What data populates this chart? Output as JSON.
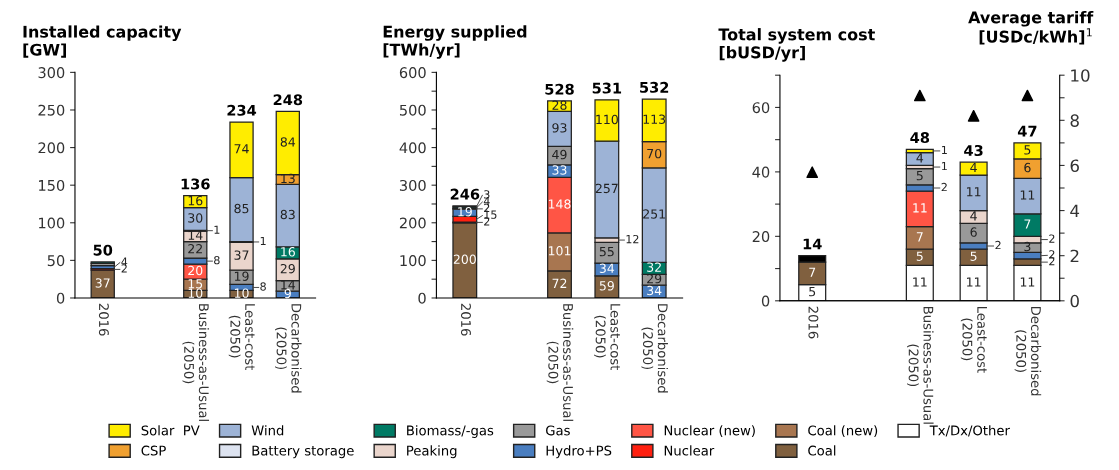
{
  "chart_data": [
    {
      "type": "bar",
      "stacked": true,
      "title": "Installed capacity\n[GW]",
      "categories": [
        "2016",
        null,
        "Business-as-Usual\n(2050)",
        "Least-cost\n(2050)",
        "Decarbonised\n(2050)"
      ],
      "ylim": [
        0,
        300
      ],
      "yticks": [
        0,
        50,
        100,
        150,
        200,
        250,
        300
      ],
      "grid": false,
      "legend": "bottom",
      "totals": [
        "50",
        null,
        "136",
        "234",
        "248"
      ],
      "series": [
        {
          "name": "Tx/Dx/Other",
          "color": "#ffffff",
          "values": [
            null,
            null,
            null,
            null,
            null
          ],
          "value_labels": [
            null,
            null,
            null,
            null,
            null
          ]
        },
        {
          "name": "Coal",
          "color": "#80603f",
          "values": [
            37,
            null,
            10,
            10,
            null
          ],
          "value_labels": [
            "37",
            null,
            "10",
            "10",
            null
          ]
        },
        {
          "name": "Coal (new)",
          "color": "#a87650",
          "values": [
            null,
            null,
            15,
            null,
            null
          ],
          "value_labels": [
            null,
            null,
            "15",
            null,
            null
          ]
        },
        {
          "name": "Nuclear",
          "color": "#ff2010",
          "values": [
            2,
            null,
            null,
            null,
            null
          ],
          "value_labels": [
            "2",
            null,
            null,
            null,
            null
          ]
        },
        {
          "name": "Nuclear (new)",
          "color": "#ff5545",
          "values": [
            null,
            null,
            20,
            null,
            null
          ],
          "value_labels": [
            null,
            null,
            "20",
            null,
            null
          ]
        },
        {
          "name": "Hydro+PS",
          "color": "#4a7ec0",
          "values": [
            4,
            null,
            8,
            8,
            9
          ],
          "value_labels": [
            "4",
            null,
            "8",
            "8",
            "9"
          ]
        },
        {
          "name": "Gas",
          "color": "#999999",
          "values": [
            3,
            null,
            22,
            19,
            14
          ],
          "value_labels": [
            null,
            null,
            "22",
            "19",
            "14"
          ]
        },
        {
          "name": "Peaking",
          "color": "#ead5cc",
          "values": [
            null,
            null,
            14,
            37,
            29
          ],
          "value_labels": [
            null,
            null,
            "14",
            "37",
            "29"
          ]
        },
        {
          "name": "Biomass/-gas",
          "color": "#007a64",
          "values": [
            2,
            null,
            null,
            1,
            16
          ],
          "value_labels": [
            null,
            null,
            null,
            "1",
            "16"
          ]
        },
        {
          "name": "Battery storage",
          "color": "#dde3f0",
          "values": [
            null,
            null,
            1,
            null,
            null
          ],
          "value_labels": [
            null,
            null,
            "1",
            null,
            null
          ]
        },
        {
          "name": "Wind",
          "color": "#9db3d6",
          "values": [
            null,
            null,
            30,
            85,
            83
          ],
          "value_labels": [
            null,
            null,
            "30",
            "85",
            "83"
          ]
        },
        {
          "name": "CSP",
          "color": "#f0a030",
          "values": [
            null,
            null,
            null,
            null,
            13
          ],
          "value_labels": [
            null,
            null,
            null,
            null,
            "13"
          ]
        },
        {
          "name": "Solar  PV",
          "color": "#ffed00",
          "values": [
            null,
            null,
            16,
            74,
            84
          ],
          "value_labels": [
            null,
            null,
            "16",
            "74",
            "84"
          ]
        }
      ]
    },
    {
      "type": "bar",
      "stacked": true,
      "title": "Energy supplied\n[TWh/yr]",
      "categories": [
        "2016",
        null,
        "Business-as-Usual\n(2050)",
        "Least-cost\n(2050)",
        "Decarbonised\n(2050)"
      ],
      "ylim": [
        0,
        600
      ],
      "yticks": [
        0,
        {
          "value": 50,
          "label": null
        },
        100,
        {
          "value": 150,
          "label": null
        },
        200,
        {
          "value": 250,
          "label": null
        },
        300,
        {
          "value": 350,
          "label": null
        },
        400,
        {
          "value": 450,
          "label": null
        },
        500,
        {
          "value": 550,
          "label": null
        },
        600
      ],
      "grid": false,
      "totals": [
        "246",
        null,
        "528",
        "531",
        "532"
      ],
      "series": [
        {
          "color": "#80603f",
          "values": [
            200,
            null,
            72,
            59,
            null
          ],
          "value_labels": [
            "200",
            null,
            "72",
            "59",
            null
          ]
        },
        {
          "color": "#a87650",
          "values": [
            2,
            null,
            101,
            null,
            null
          ],
          "value_labels": [
            "2",
            null,
            "101",
            null,
            null
          ]
        },
        {
          "color": "#ff2010",
          "values": [
            15,
            null,
            null,
            null,
            null
          ],
          "value_labels": [
            "15",
            null,
            null,
            null,
            null
          ]
        },
        {
          "color": "#ff5545",
          "values": [
            null,
            null,
            148,
            null,
            null
          ],
          "value_labels": [
            null,
            null,
            "148",
            null,
            null
          ]
        },
        {
          "color": "#4a7ec0",
          "values": [
            19,
            null,
            33,
            34,
            34
          ],
          "value_labels": [
            "19",
            null,
            "33",
            "34",
            "34"
          ]
        },
        {
          "color": "#999999",
          "values": [
            null,
            null,
            49,
            55,
            29
          ],
          "value_labels": [
            null,
            null,
            "49",
            "55",
            "29"
          ]
        },
        {
          "color": "#ead5cc",
          "values": [
            2,
            null,
            null,
            12,
            null
          ],
          "value_labels": [
            "2",
            null,
            null,
            "12",
            null
          ]
        },
        {
          "color": "#007a64",
          "values": [
            4,
            null,
            null,
            null,
            32
          ],
          "value_labels": [
            "4",
            null,
            null,
            null,
            "32"
          ]
        },
        {
          "color": "#dde3f0",
          "values": [
            3,
            null,
            null,
            null,
            null
          ],
          "value_labels": [
            "3",
            null,
            null,
            null,
            null
          ]
        },
        {
          "color": "#9db3d6",
          "values": [
            null,
            null,
            93,
            257,
            251
          ],
          "value_labels": [
            null,
            null,
            "93",
            "257",
            "251"
          ]
        },
        {
          "color": "#f0a030",
          "values": [
            null,
            null,
            null,
            null,
            70
          ],
          "value_labels": [
            null,
            null,
            null,
            null,
            "70"
          ]
        },
        {
          "color": "#ffed00",
          "values": [
            null,
            null,
            28,
            110,
            113
          ],
          "value_labels": [
            null,
            null,
            "28",
            "110",
            "113"
          ]
        }
      ]
    },
    {
      "type": "bar",
      "stacked": true,
      "title": "Total system cost\n[bUSD/yr]",
      "y2label": "Average tariff\n[USDc/kWh]$^{1}$",
      "categories": [
        "2016",
        null,
        "Business-as-Usual\n(2050)",
        "Least-cost\n(2050)",
        "Decarbonised\n(2050)"
      ],
      "ylim": [
        0,
        70
      ],
      "yticks": [
        0,
        {
          "value": 10,
          "label": null
        },
        20,
        {
          "value": 30,
          "label": null
        },
        40,
        {
          "value": 50,
          "label": null
        },
        60,
        {
          "value": 70,
          "label": null
        }
      ],
      "y2lim": [
        0,
        10
      ],
      "y2ticks": [
        0,
        {
          "value": 1,
          "label": null
        },
        2,
        {
          "value": 3,
          "label": null
        },
        4,
        {
          "value": 5,
          "label": null
        },
        6,
        {
          "value": 7,
          "label": null
        },
        8,
        {
          "value": 9,
          "label": null
        },
        10
      ],
      "grid": false,
      "totals": [
        "14",
        null,
        "48",
        "43",
        "47"
      ],
      "series": [
        {
          "color": "#ffffff",
          "values": [
            5,
            null,
            11,
            11,
            11
          ],
          "value_labels": [
            "5",
            null,
            "11",
            "11",
            "11"
          ]
        },
        {
          "color": "#80603f",
          "values": [
            7,
            null,
            5,
            5,
            2
          ],
          "value_labels": [
            "7",
            null,
            "5",
            "5",
            "2"
          ]
        },
        {
          "color": "#a87650",
          "values": [
            null,
            null,
            7,
            null,
            null
          ],
          "value_labels": [
            null,
            null,
            "7",
            null,
            null
          ]
        },
        {
          "color": "#ff5545",
          "values": [
            null,
            null,
            11,
            null,
            null
          ],
          "value_labels": [
            null,
            null,
            "11",
            null,
            null
          ]
        },
        {
          "color": "#4a7ec0",
          "values": [
            null,
            null,
            2,
            2,
            2
          ],
          "value_labels": [
            null,
            null,
            "2",
            "2",
            "2"
          ]
        },
        {
          "color": "#999999",
          "values": [
            null,
            null,
            5,
            6,
            3
          ],
          "value_labels": [
            null,
            null,
            "5",
            "6",
            "3"
          ]
        },
        {
          "color": "#ead5cc",
          "values": [
            null,
            null,
            1,
            4,
            2
          ],
          "value_labels": [
            null,
            null,
            "1",
            "4",
            "2"
          ]
        },
        {
          "color": "#007a64",
          "values": [
            null,
            null,
            null,
            null,
            7
          ],
          "value_labels": [
            null,
            null,
            null,
            null,
            "7"
          ]
        },
        {
          "color": "#9db3d6",
          "values": [
            null,
            null,
            4,
            11,
            11
          ],
          "value_labels": [
            null,
            null,
            "4",
            "11",
            "11"
          ]
        },
        {
          "color": "#f0a030",
          "values": [
            null,
            null,
            null,
            null,
            6
          ],
          "value_labels": [
            null,
            null,
            null,
            null,
            "6"
          ]
        },
        {
          "color": "#ffed00",
          "values": [
            null,
            null,
            1,
            4,
            5
          ],
          "value_labels": [
            null,
            null,
            "1",
            "4",
            "5"
          ]
        },
        {
          "color": "#000000",
          "values": [
            2,
            null,
            null,
            null,
            null
          ],
          "value_labels": [
            null,
            null,
            null,
            null,
            null
          ]
        },
        {
          "type": "scatter",
          "axis": "y2",
          "marker": "triangle",
          "color": "#000000",
          "values": [
            5.7,
            null,
            9.1,
            8.2,
            9.1
          ]
        }
      ]
    }
  ]
}
